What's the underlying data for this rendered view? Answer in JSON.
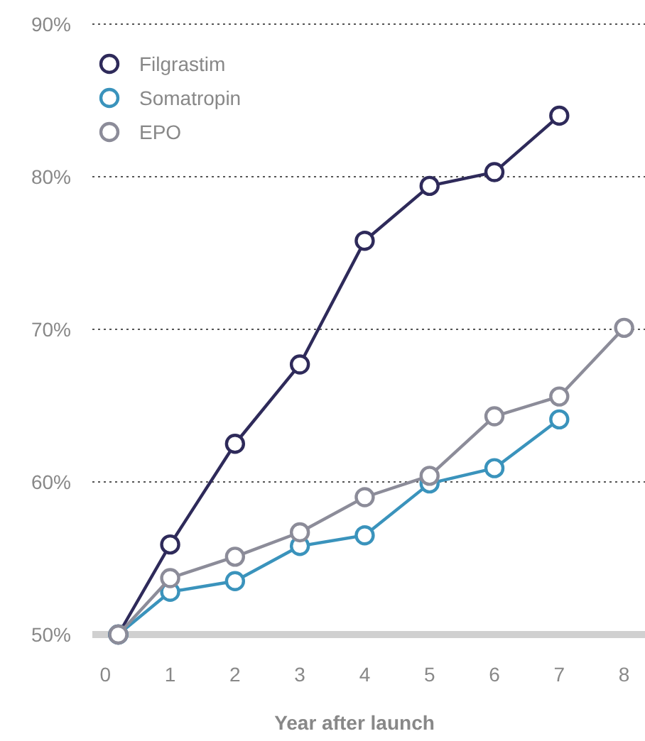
{
  "chart_data": {
    "type": "line",
    "xlabel": "Year after launch",
    "xlim": [
      -0.2,
      8.3
    ],
    "xticks": [
      0,
      1,
      2,
      3,
      4,
      5,
      6,
      7,
      8
    ],
    "ylim": [
      50,
      90
    ],
    "yticks": [
      {
        "value": 50,
        "label": "50%"
      },
      {
        "value": 60,
        "label": "60%"
      },
      {
        "value": 70,
        "label": "70%"
      },
      {
        "value": 80,
        "label": "80%"
      },
      {
        "value": 90,
        "label": "90%"
      }
    ],
    "grid": "y",
    "legend": "top left",
    "marker": "circle",
    "line_style": "solid",
    "series": [
      {
        "name": "Filgrastim",
        "color": "#2e2a5a",
        "x": [
          0.2,
          1,
          2,
          3,
          4,
          5,
          6,
          7
        ],
        "values": [
          50,
          55.9,
          62.5,
          67.7,
          75.8,
          79.4,
          80.3,
          84.0
        ]
      },
      {
        "name": "Somatropin",
        "color": "#3a93bc",
        "x": [
          0.2,
          1,
          2,
          3,
          4,
          5,
          6,
          7
        ],
        "values": [
          50,
          52.8,
          53.5,
          55.8,
          56.5,
          59.9,
          60.9,
          64.1
        ]
      },
      {
        "name": "EPO",
        "color": "#8c8c99",
        "x": [
          0.2,
          1,
          2,
          3,
          4,
          5,
          6,
          7,
          8
        ],
        "values": [
          50,
          53.7,
          55.1,
          56.7,
          59.0,
          60.4,
          64.3,
          65.6,
          70.1
        ]
      }
    ]
  }
}
